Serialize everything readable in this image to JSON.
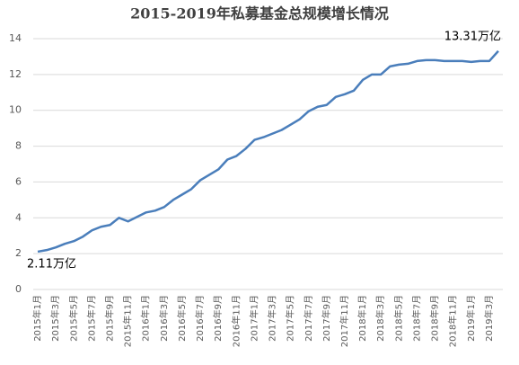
{
  "chart_data": {
    "type": "line",
    "title": "2015-2019年私募基金总规模增长情况",
    "categories": [
      "2015年1月",
      null,
      "2015年3月",
      null,
      "2015年5月",
      null,
      "2015年7月",
      null,
      "2015年9月",
      null,
      "2015年11月",
      null,
      "2016年1月",
      null,
      "2016年3月",
      null,
      "2016年5月",
      null,
      "2016年7月",
      null,
      "2016年9月",
      null,
      "2016年11月",
      null,
      "2017年1月",
      null,
      "2017年3月",
      null,
      "2017年5月",
      null,
      "2017年7月",
      null,
      "2017年9月",
      null,
      "2017年11月",
      null,
      "2018年1月",
      null,
      "2018年3月",
      null,
      "2018年5月",
      null,
      "2018年7月",
      null,
      "2018年9月",
      null,
      "2018年11月",
      null,
      "2019年1月",
      null,
      "2019年3月",
      null
    ],
    "values": [
      2.11,
      2.2,
      2.35,
      2.55,
      2.7,
      2.95,
      3.3,
      3.5,
      3.6,
      4.0,
      3.8,
      4.05,
      4.3,
      4.4,
      4.6,
      5.0,
      5.3,
      5.6,
      6.1,
      6.4,
      6.7,
      7.25,
      7.45,
      7.85,
      8.35,
      8.5,
      8.7,
      8.9,
      9.2,
      9.5,
      9.95,
      10.2,
      10.3,
      10.75,
      10.9,
      11.1,
      11.7,
      12.0,
      12.0,
      12.45,
      12.55,
      12.6,
      12.75,
      12.8,
      12.8,
      12.75,
      12.75,
      12.75,
      12.7,
      12.75,
      12.75,
      13.31
    ],
    "value_labels": [
      "2.11万亿",
      null,
      null,
      null,
      null,
      null,
      null,
      null,
      null,
      null,
      null,
      null,
      null,
      null,
      null,
      null,
      null,
      null,
      null,
      null,
      null,
      null,
      null,
      null,
      null,
      null,
      null,
      null,
      null,
      null,
      null,
      null,
      null,
      null,
      null,
      null,
      null,
      null,
      null,
      null,
      null,
      null,
      null,
      null,
      null,
      null,
      null,
      null,
      null,
      null,
      null,
      "13.31万亿"
    ],
    "color": "#4a7ebb",
    "ylim": [
      0,
      14
    ],
    "yticks": [
      0,
      2,
      4,
      6,
      8,
      10,
      12,
      14
    ],
    "grid": true
  }
}
